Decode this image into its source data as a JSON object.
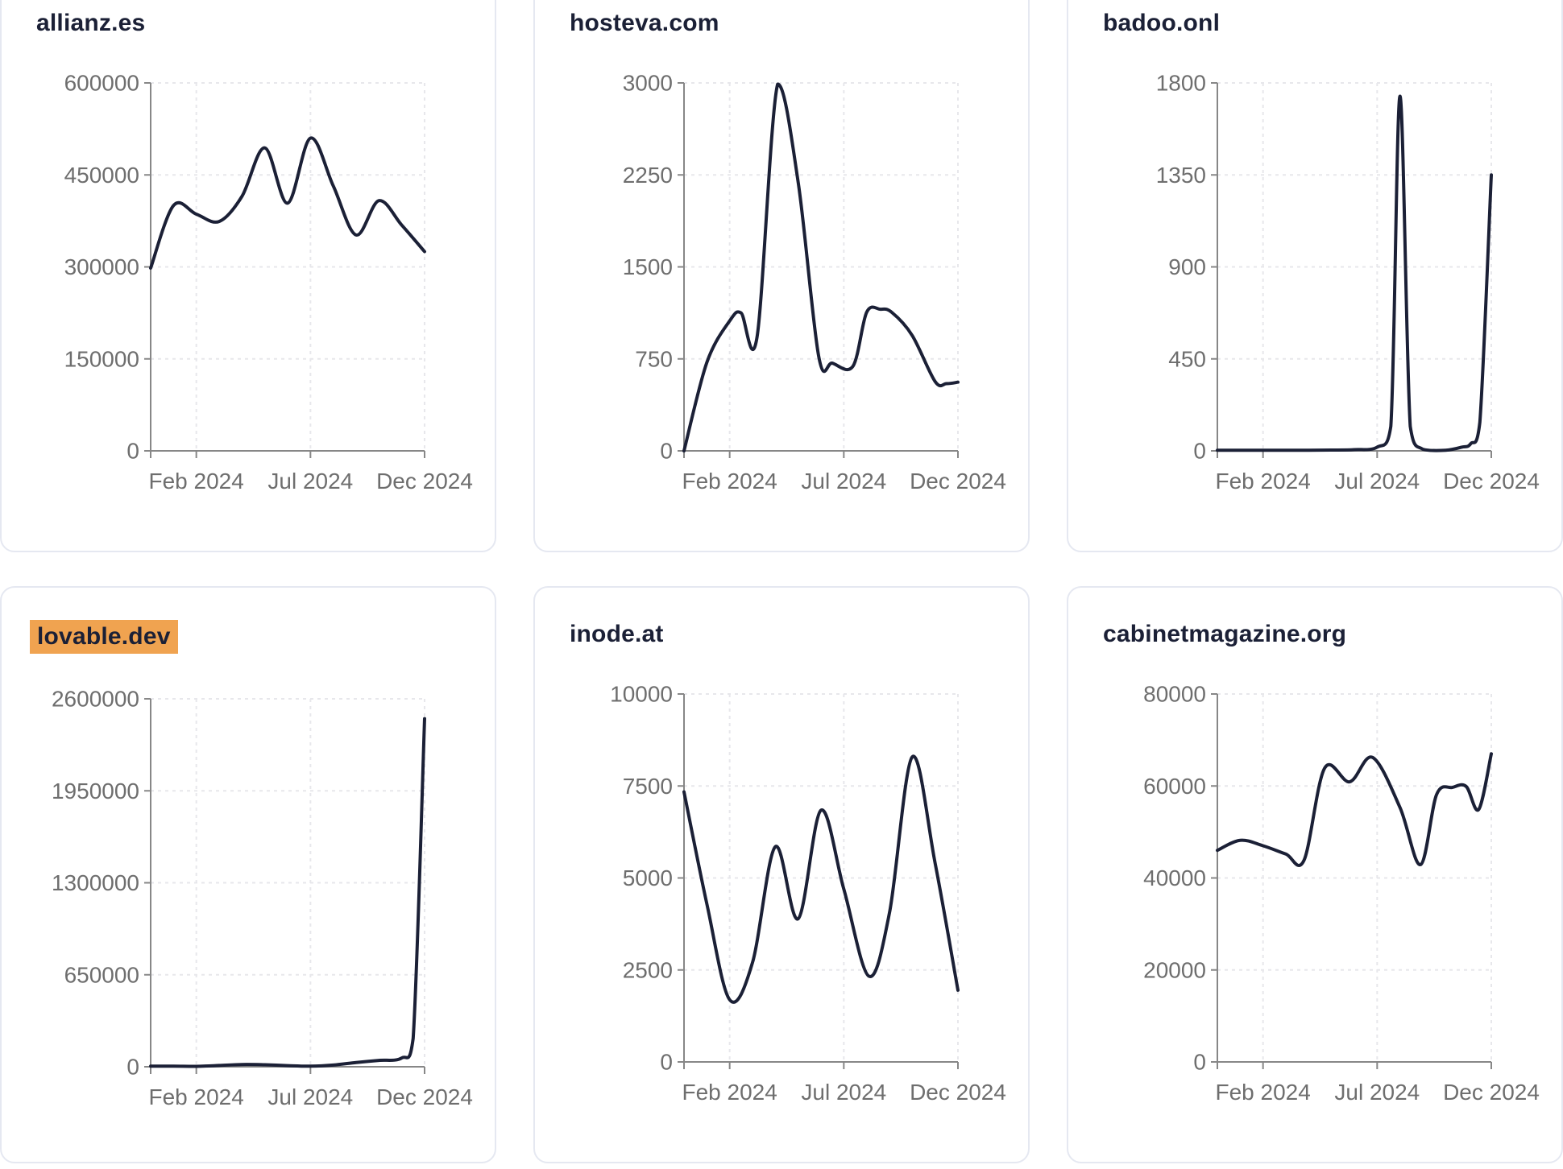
{
  "page": {
    "background": "#ffffff",
    "description": "Dashboard grid of six domain traffic line charts, Dec 2023 - Dec 2024"
  },
  "style": {
    "line_color": "#1b2036",
    "title_color": "#1b2036",
    "highlight_color": "#f0a350",
    "axis_color": "#878787",
    "tick_label_color": "#6e6e6e",
    "gridline_color": "#e7e7eb",
    "card_border_color": "#e5e8f1"
  },
  "chart_data": [
    {
      "type": "line",
      "title": "allianz.es",
      "highlighted": false,
      "ylim": [
        0,
        600000
      ],
      "y_ticks": [
        0,
        150000,
        300000,
        450000,
        600000
      ],
      "x_range_months": [
        0,
        12
      ],
      "x_ticks": [
        {
          "label": "Feb 2024",
          "x": 2
        },
        {
          "label": "Jul 2024",
          "x": 7
        },
        {
          "label": "Dec 2024",
          "x": 12
        }
      ],
      "points": [
        [
          0,
          298000
        ],
        [
          1,
          400000
        ],
        [
          2,
          386000
        ],
        [
          3,
          374000
        ],
        [
          4,
          415000
        ],
        [
          5,
          494000
        ],
        [
          6,
          404000
        ],
        [
          7,
          510000
        ],
        [
          8,
          432000
        ],
        [
          9,
          352000
        ],
        [
          10,
          408000
        ],
        [
          11,
          368000
        ],
        [
          12,
          325000
        ]
      ]
    },
    {
      "type": "line",
      "title": "hosteva.com",
      "highlighted": false,
      "ylim": [
        0,
        3000
      ],
      "y_ticks": [
        0,
        750,
        1500,
        2250,
        3000
      ],
      "x_range_months": [
        0,
        12
      ],
      "x_ticks": [
        {
          "label": "Feb 2024",
          "x": 2
        },
        {
          "label": "Jul 2024",
          "x": 7
        },
        {
          "label": "Dec 2024",
          "x": 12
        }
      ],
      "points": [
        [
          0,
          0
        ],
        [
          1,
          720
        ],
        [
          2,
          1060
        ],
        [
          2.5,
          1125
        ],
        [
          3.2,
          930
        ],
        [
          4.1,
          2990
        ],
        [
          5,
          2190
        ],
        [
          5.9,
          770
        ],
        [
          6.5,
          715
        ],
        [
          7.4,
          690
        ],
        [
          8,
          1130
        ],
        [
          8.6,
          1155
        ],
        [
          9.1,
          1130
        ],
        [
          10,
          940
        ],
        [
          11,
          565
        ],
        [
          11.5,
          548
        ],
        [
          12,
          560
        ]
      ]
    },
    {
      "type": "line",
      "title": "badoo.onl",
      "highlighted": false,
      "ylim": [
        0,
        1800
      ],
      "y_ticks": [
        0,
        450,
        900,
        1350,
        1800
      ],
      "x_range_months": [
        0,
        12
      ],
      "x_ticks": [
        {
          "label": "Feb 2024",
          "x": 2
        },
        {
          "label": "Jul 2024",
          "x": 7
        },
        {
          "label": "Dec 2024",
          "x": 12
        }
      ],
      "points": [
        [
          0,
          3
        ],
        [
          1,
          3
        ],
        [
          2,
          3
        ],
        [
          3,
          3
        ],
        [
          4,
          3
        ],
        [
          5,
          4
        ],
        [
          6,
          6
        ],
        [
          7,
          18
        ],
        [
          7.6,
          120
        ],
        [
          8,
          1735
        ],
        [
          8.45,
          120
        ],
        [
          9,
          8
        ],
        [
          10,
          3
        ],
        [
          10.7,
          18
        ],
        [
          11.1,
          35
        ],
        [
          11.5,
          140
        ],
        [
          12,
          1350
        ]
      ]
    },
    {
      "type": "line",
      "title": "lovable.dev",
      "highlighted": true,
      "ylim": [
        0,
        2600000
      ],
      "y_ticks": [
        0,
        650000,
        1300000,
        1950000,
        2600000
      ],
      "x_range_months": [
        0,
        12
      ],
      "x_ticks": [
        {
          "label": "Feb 2024",
          "x": 2
        },
        {
          "label": "Jul 2024",
          "x": 7
        },
        {
          "label": "Dec 2024",
          "x": 12
        }
      ],
      "points": [
        [
          0,
          4000
        ],
        [
          1,
          4000
        ],
        [
          2,
          3000
        ],
        [
          3,
          9000
        ],
        [
          4,
          16000
        ],
        [
          5,
          14000
        ],
        [
          6,
          8000
        ],
        [
          7,
          4000
        ],
        [
          8,
          12000
        ],
        [
          9,
          30000
        ],
        [
          10,
          45000
        ],
        [
          11,
          62000
        ],
        [
          11.5,
          200000
        ],
        [
          12,
          2460000
        ]
      ]
    },
    {
      "type": "line",
      "title": "inode.at",
      "highlighted": false,
      "ylim": [
        0,
        10000
      ],
      "y_ticks": [
        0,
        2500,
        5000,
        7500,
        10000
      ],
      "x_range_months": [
        0,
        12
      ],
      "x_ticks": [
        {
          "label": "Feb 2024",
          "x": 2
        },
        {
          "label": "Jul 2024",
          "x": 7
        },
        {
          "label": "Dec 2024",
          "x": 12
        }
      ],
      "points": [
        [
          0,
          7340
        ],
        [
          1,
          4300
        ],
        [
          2,
          1690
        ],
        [
          3,
          2700
        ],
        [
          4,
          5850
        ],
        [
          5,
          3890
        ],
        [
          6,
          6840
        ],
        [
          7,
          4700
        ],
        [
          8.1,
          2330
        ],
        [
          9,
          4050
        ],
        [
          10,
          8290
        ],
        [
          11,
          5400
        ],
        [
          12,
          1950
        ]
      ]
    },
    {
      "type": "line",
      "title": "cabinetmagazine.org",
      "highlighted": false,
      "ylim": [
        0,
        80000
      ],
      "y_ticks": [
        0,
        20000,
        40000,
        60000,
        80000
      ],
      "x_range_months": [
        0,
        12
      ],
      "x_ticks": [
        {
          "label": "Feb 2024",
          "x": 2
        },
        {
          "label": "Jul 2024",
          "x": 7
        },
        {
          "label": "Dec 2024",
          "x": 12
        }
      ],
      "points": [
        [
          0,
          46000
        ],
        [
          1,
          48200
        ],
        [
          2,
          47000
        ],
        [
          3,
          45200
        ],
        [
          3.8,
          43900
        ],
        [
          4.7,
          63900
        ],
        [
          5.8,
          60900
        ],
        [
          6.8,
          66200
        ],
        [
          8,
          55300
        ],
        [
          8.9,
          42900
        ],
        [
          9.6,
          58100
        ],
        [
          10.3,
          59700
        ],
        [
          10.9,
          59900
        ],
        [
          11.45,
          54900
        ],
        [
          12,
          67000
        ]
      ]
    }
  ]
}
